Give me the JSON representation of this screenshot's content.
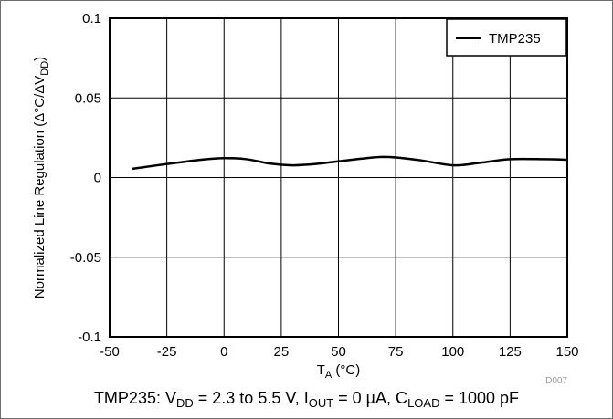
{
  "chart_data": {
    "type": "line",
    "xlabel": {
      "main": "T",
      "sub": "A",
      "unit": " (°C)"
    },
    "ylabel": {
      "main": "Normalized Line Regulation (Δ°C/ΔV",
      "sub": "DD",
      "end": ")"
    },
    "xlim": [
      -50,
      150
    ],
    "ylim": [
      -0.1,
      0.1
    ],
    "x_ticks": [
      -50,
      -25,
      0,
      25,
      50,
      75,
      100,
      125,
      150
    ],
    "x_tick_labels": [
      "-50",
      "-25",
      "0",
      "25",
      "50",
      "75",
      "100",
      "125",
      "150"
    ],
    "y_ticks": [
      -0.1,
      -0.05,
      0,
      0.05,
      0.1
    ],
    "y_tick_labels": [
      "-0.1",
      "-0.05",
      "0",
      "0.05",
      "0.1"
    ],
    "grid": true,
    "legend_position": "top-right",
    "series": [
      {
        "name": "TMP235",
        "color": "#000000",
        "x": [
          -40,
          -25,
          -10,
          0,
          10,
          20,
          30,
          40,
          55,
          70,
          85,
          100,
          112,
          125,
          140,
          150
        ],
        "y": [
          0.0055,
          0.0085,
          0.0112,
          0.0122,
          0.0115,
          0.0088,
          0.0077,
          0.0085,
          0.011,
          0.013,
          0.011,
          0.0077,
          0.0093,
          0.0115,
          0.0115,
          0.0112
        ]
      }
    ]
  },
  "figure_id": "D007",
  "caption": [
    {
      "t": "TMP235: V"
    },
    {
      "t": "DD",
      "sub": true
    },
    {
      "t": " = 2.3 to 5.5 V, I"
    },
    {
      "t": "OUT",
      "sub": true
    },
    {
      "t": " = 0 µA, C"
    },
    {
      "t": "LOAD",
      "sub": true
    },
    {
      "t": " = 1000 pF"
    }
  ]
}
